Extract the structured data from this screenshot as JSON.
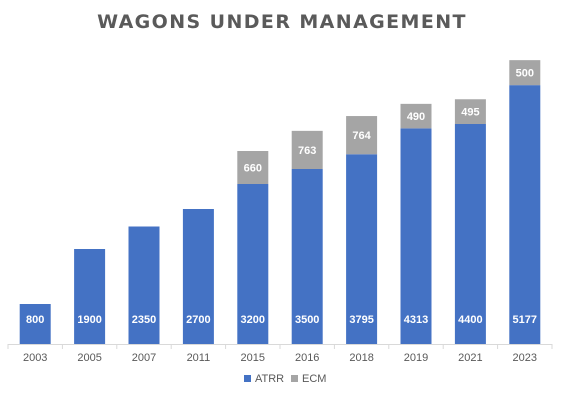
{
  "chart_data": {
    "type": "bar",
    "stacked": true,
    "title": "WAGONS UNDER MANAGEMENT",
    "xlabel": "",
    "ylabel": "",
    "categories": [
      "2003",
      "2005",
      "2007",
      "2011",
      "2015",
      "2016",
      "2018",
      "2019",
      "2021",
      "2023"
    ],
    "series": [
      {
        "name": "ATRR",
        "color": "#4472c4",
        "values": [
          800,
          1900,
          2350,
          2700,
          3200,
          3500,
          3795,
          4313,
          4400,
          5177
        ]
      },
      {
        "name": "ECM",
        "color": "#a5a5a5",
        "values": [
          null,
          null,
          null,
          null,
          660,
          763,
          764,
          490,
          495,
          500
        ]
      }
    ],
    "ylim": [
      0,
      6000
    ],
    "grid": false,
    "show_y_axis": false,
    "data_labels": true,
    "legend_position": "bottom"
  }
}
